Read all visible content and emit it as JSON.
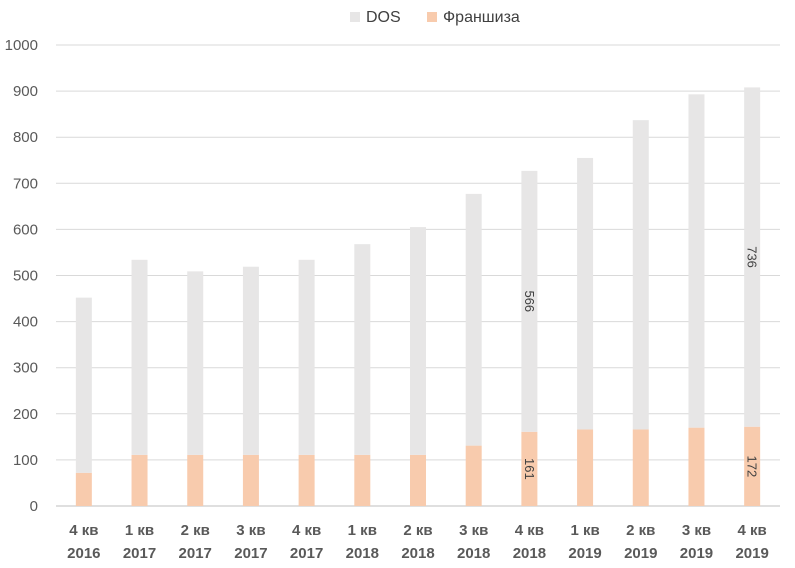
{
  "chart_data": {
    "type": "bar",
    "stacked": true,
    "categories": [
      [
        "4 кв",
        "2016"
      ],
      [
        "1 кв",
        "2017"
      ],
      [
        "2 кв",
        "2017"
      ],
      [
        "3 кв",
        "2017"
      ],
      [
        "4 кв",
        "2017"
      ],
      [
        "1 кв",
        "2018"
      ],
      [
        "2 кв",
        "2018"
      ],
      [
        "3 кв",
        "2018"
      ],
      [
        "4 кв",
        "2018"
      ],
      [
        "1 кв",
        "2019"
      ],
      [
        "2 кв",
        "2019"
      ],
      [
        "3 кв",
        "2019"
      ],
      [
        "4 кв",
        "2019"
      ]
    ],
    "series": [
      {
        "name": "Франшиза",
        "color": "#f8cbad",
        "values": [
          72,
          111,
          111,
          111,
          111,
          111,
          111,
          131,
          161,
          166,
          166,
          170,
          172
        ]
      },
      {
        "name": "DOS",
        "color": "#e7e6e6",
        "values": [
          380,
          423,
          398,
          408,
          423,
          457,
          494,
          546,
          566,
          589,
          671,
          723,
          736
        ]
      }
    ],
    "data_labels": [
      {
        "series": "Франшиза",
        "category_index": 8,
        "text": "161"
      },
      {
        "series": "DOS",
        "category_index": 8,
        "text": "566"
      },
      {
        "series": "Франшиза",
        "category_index": 12,
        "text": "172"
      },
      {
        "series": "DOS",
        "category_index": 12,
        "text": "736"
      }
    ],
    "y_ticks": [
      "0",
      "100",
      "200",
      "300",
      "400",
      "500",
      "600",
      "700",
      "800",
      "900",
      "1000"
    ],
    "ylim": [
      0,
      1000
    ],
    "grid": true,
    "legend": {
      "position": "top-center",
      "order": [
        "DOS",
        "Франшиза"
      ]
    }
  }
}
